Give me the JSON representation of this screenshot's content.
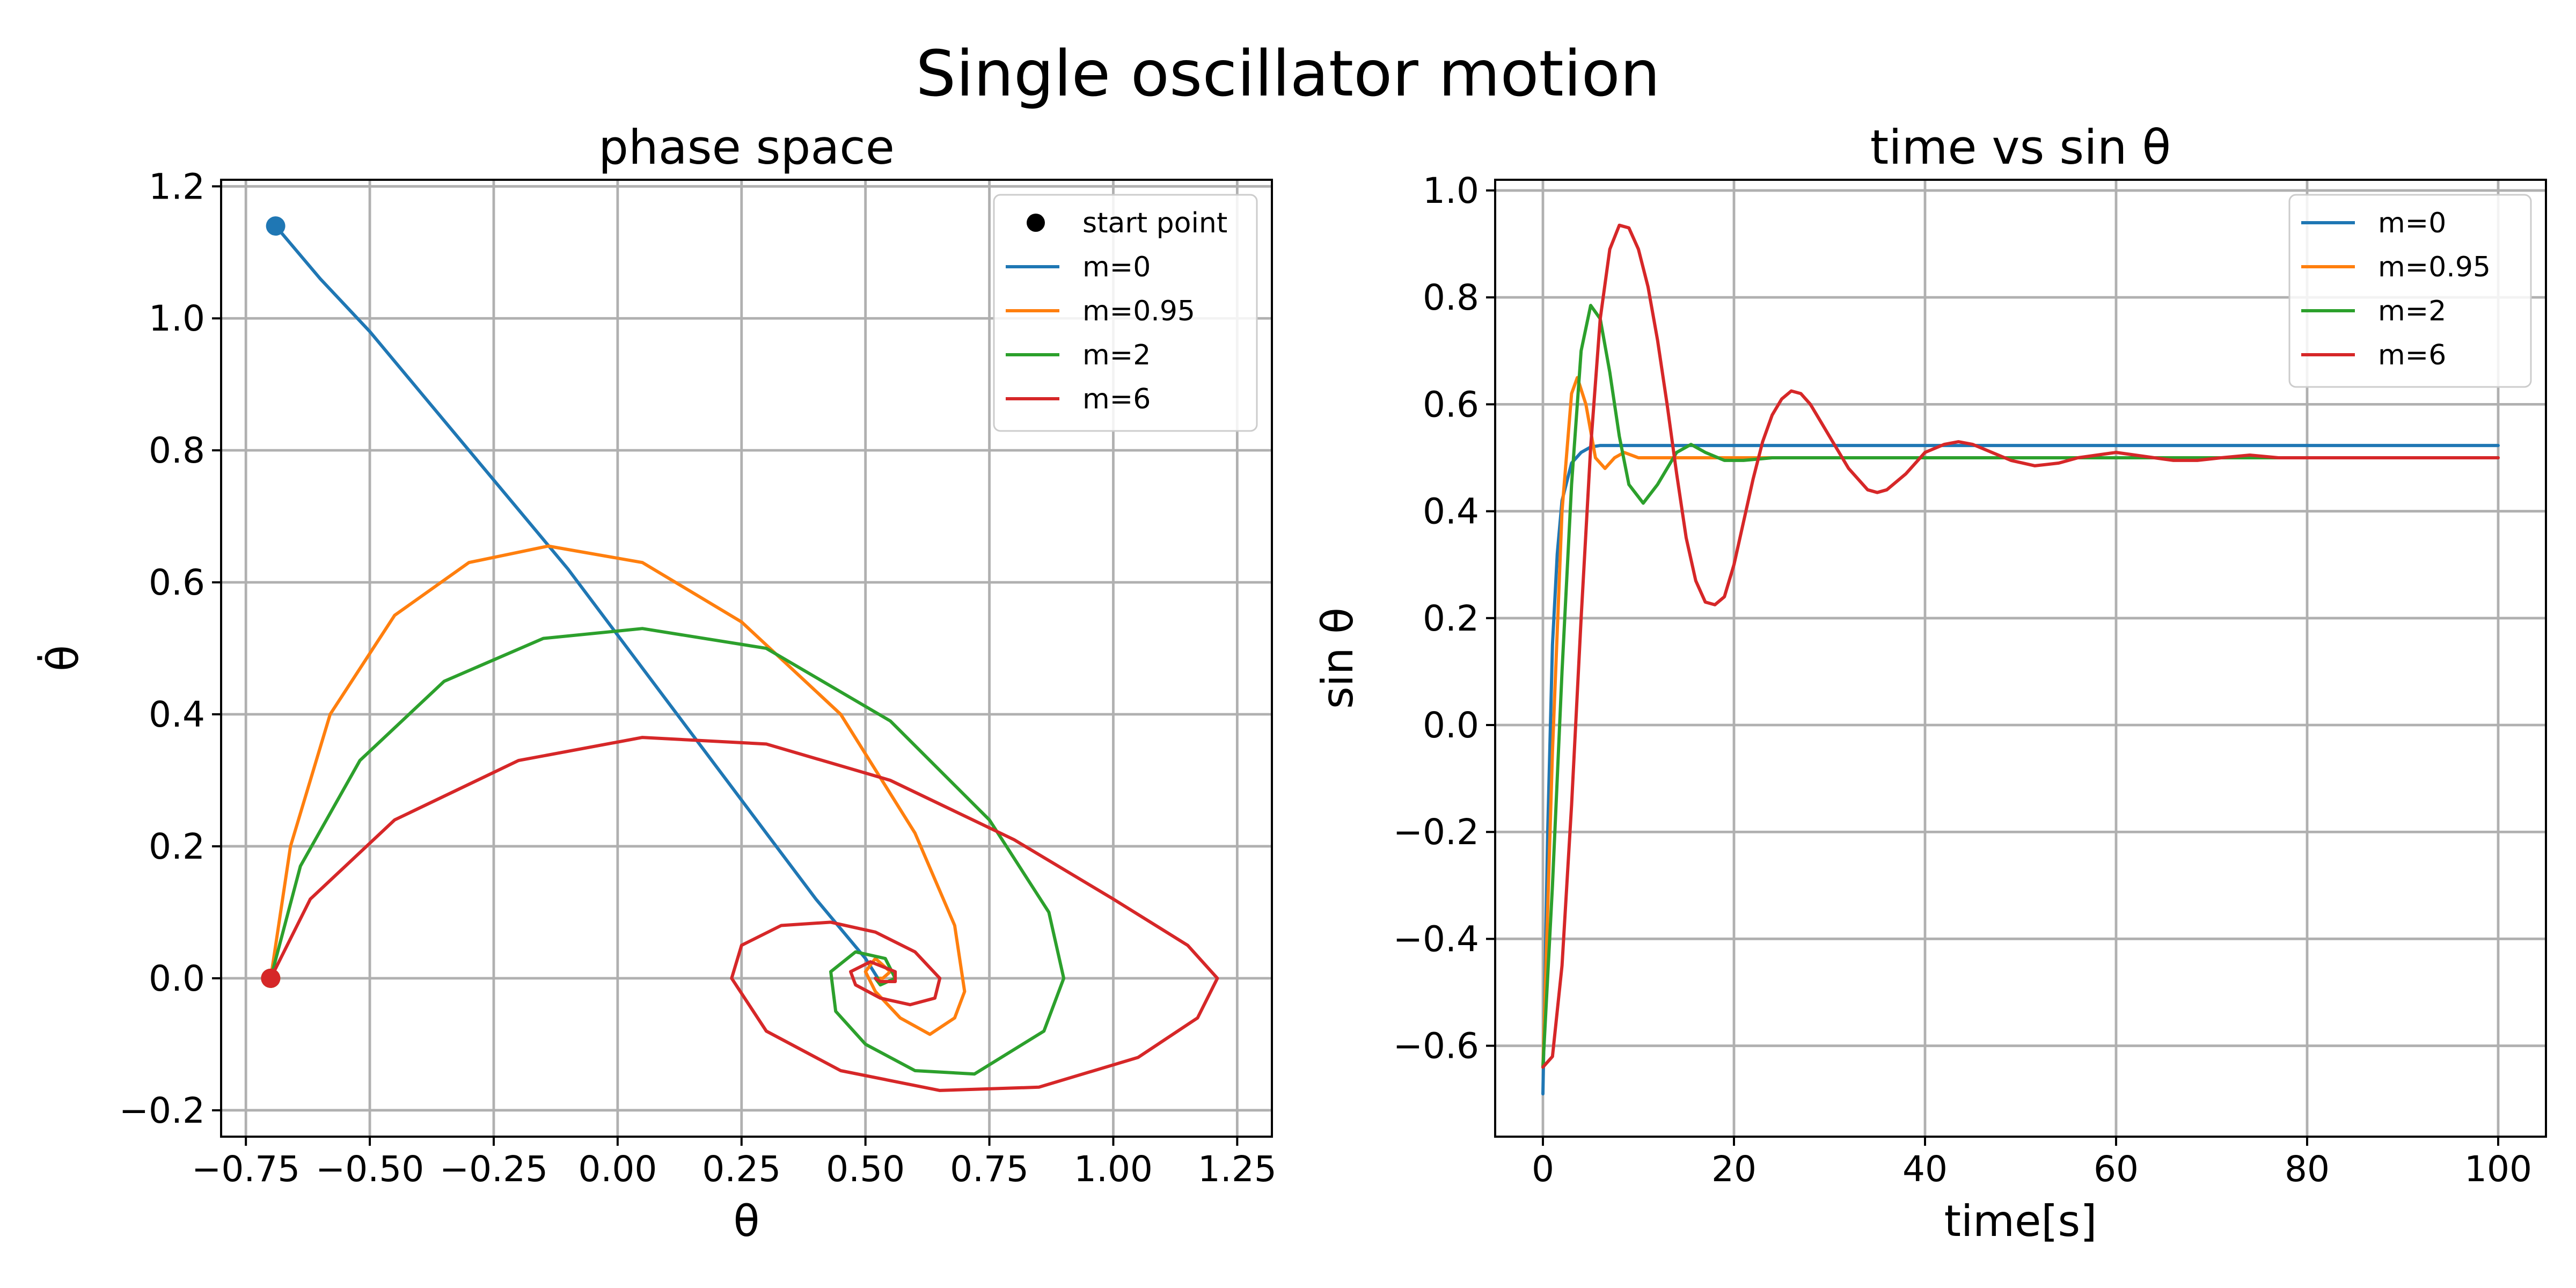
{
  "figure": {
    "title": "Single oscillator motion"
  },
  "colors": {
    "m=0": "#1f77b4",
    "m=0.95": "#ff7f0e",
    "m=2": "#2ca02c",
    "m=6": "#d62728",
    "start": "#000000",
    "grid": "#b0b0b0"
  },
  "chart_data": [
    {
      "type": "line",
      "title": "phase space",
      "xlabel": "θ",
      "ylabel": "θ̇",
      "xlim": [
        -0.8,
        1.32
      ],
      "ylim": [
        -0.24,
        1.21
      ],
      "xticks": [
        -0.75,
        -0.5,
        -0.25,
        0.0,
        0.25,
        0.5,
        0.75,
        1.0,
        1.25
      ],
      "xtick_labels": [
        "−0.75",
        "−0.50",
        "−0.25",
        "0.00",
        "0.25",
        "0.50",
        "0.75",
        "1.00",
        "1.25"
      ],
      "yticks": [
        -0.2,
        0.0,
        0.2,
        0.4,
        0.6,
        0.8,
        1.0,
        1.2
      ],
      "ytick_labels": [
        "−0.2",
        "0.0",
        "0.2",
        "0.4",
        "0.6",
        "0.8",
        "1.0",
        "1.2"
      ],
      "grid": true,
      "legend": {
        "position": "top-right",
        "entries": [
          "start point",
          "m=0",
          "m=0.95",
          "m=2",
          "m=6"
        ]
      },
      "start_points": [
        {
          "series": "m=0",
          "x": -0.69,
          "y": 1.14
        },
        {
          "series": "m=0.95",
          "x": -0.7,
          "y": 0.0
        },
        {
          "series": "m=2",
          "x": -0.7,
          "y": 0.0
        },
        {
          "series": "m=6",
          "x": -0.7,
          "y": 0.0
        }
      ],
      "series": [
        {
          "name": "m=0",
          "x": [
            -0.69,
            -0.6,
            -0.5,
            -0.4,
            -0.3,
            -0.2,
            -0.1,
            0.0,
            0.1,
            0.2,
            0.3,
            0.4,
            0.5,
            0.525,
            0.53
          ],
          "y": [
            1.14,
            1.06,
            0.98,
            0.89,
            0.8,
            0.71,
            0.62,
            0.52,
            0.42,
            0.32,
            0.22,
            0.12,
            0.03,
            0.0,
            0.0
          ]
        },
        {
          "name": "m=0.95",
          "x": [
            -0.7,
            -0.66,
            -0.58,
            -0.45,
            -0.3,
            -0.14,
            0.05,
            0.25,
            0.45,
            0.6,
            0.68,
            0.7,
            0.68,
            0.63,
            0.57,
            0.52,
            0.5,
            0.52,
            0.55,
            0.535,
            0.525
          ],
          "y": [
            0.0,
            0.2,
            0.4,
            0.55,
            0.63,
            0.655,
            0.63,
            0.54,
            0.4,
            0.22,
            0.08,
            -0.02,
            -0.06,
            -0.085,
            -0.06,
            -0.02,
            0.01,
            0.03,
            0.01,
            0.0,
            0.0
          ]
        },
        {
          "name": "m=2",
          "x": [
            -0.7,
            -0.64,
            -0.52,
            -0.35,
            -0.15,
            0.05,
            0.3,
            0.55,
            0.75,
            0.87,
            0.9,
            0.86,
            0.72,
            0.6,
            0.5,
            0.44,
            0.43,
            0.48,
            0.54,
            0.56,
            0.53,
            0.52,
            0.525
          ],
          "y": [
            0.0,
            0.17,
            0.33,
            0.45,
            0.515,
            0.53,
            0.5,
            0.39,
            0.24,
            0.1,
            0.0,
            -0.08,
            -0.145,
            -0.14,
            -0.1,
            -0.05,
            0.01,
            0.04,
            0.03,
            0.0,
            -0.01,
            0.0,
            0.0
          ]
        },
        {
          "name": "m=6",
          "x": [
            -0.7,
            -0.62,
            -0.45,
            -0.2,
            0.05,
            0.3,
            0.55,
            0.8,
            1.0,
            1.15,
            1.21,
            1.17,
            1.05,
            0.85,
            0.65,
            0.45,
            0.3,
            0.23,
            0.25,
            0.33,
            0.43,
            0.52,
            0.6,
            0.65,
            0.64,
            0.59,
            0.53,
            0.48,
            0.47,
            0.51,
            0.56,
            0.56,
            0.53,
            0.52
          ],
          "y": [
            0.0,
            0.12,
            0.24,
            0.33,
            0.365,
            0.355,
            0.3,
            0.21,
            0.12,
            0.05,
            0.0,
            -0.06,
            -0.12,
            -0.165,
            -0.17,
            -0.14,
            -0.08,
            0.0,
            0.05,
            0.08,
            0.085,
            0.07,
            0.04,
            0.0,
            -0.03,
            -0.04,
            -0.03,
            -0.01,
            0.01,
            0.025,
            0.01,
            -0.005,
            -0.005,
            0.0
          ]
        }
      ]
    },
    {
      "type": "line",
      "title": "time vs sin θ",
      "xlabel": "time[s]",
      "ylabel": "sin θ",
      "xlim": [
        -5,
        105
      ],
      "ylim": [
        -0.77,
        1.02
      ],
      "xticks": [
        0,
        20,
        40,
        60,
        80,
        100
      ],
      "xtick_labels": [
        "0",
        "20",
        "40",
        "60",
        "80",
        "100"
      ],
      "yticks": [
        -0.6,
        -0.4,
        -0.2,
        0.0,
        0.2,
        0.4,
        0.6,
        0.8,
        1.0
      ],
      "ytick_labels": [
        "−0.6",
        "−0.4",
        "−0.2",
        "0.0",
        "0.2",
        "0.4",
        "0.6",
        "0.8",
        "1.0"
      ],
      "grid": true,
      "legend": {
        "position": "top-right",
        "entries": [
          "m=0",
          "m=0.95",
          "m=2",
          "m=6"
        ]
      },
      "series": [
        {
          "name": "m=0",
          "x": [
            0,
            0.5,
            1,
            1.5,
            2,
            3,
            4,
            5,
            6,
            8,
            10,
            100
          ],
          "y": [
            -0.69,
            -0.2,
            0.15,
            0.32,
            0.42,
            0.49,
            0.51,
            0.52,
            0.523,
            0.523,
            0.523,
            0.523
          ]
        },
        {
          "name": "m=0.95",
          "x": [
            0,
            1,
            2,
            3,
            3.6,
            4.5,
            5.5,
            6.5,
            7.5,
            8.5,
            10,
            12,
            14,
            100
          ],
          "y": [
            -0.64,
            -0.05,
            0.4,
            0.62,
            0.65,
            0.6,
            0.5,
            0.48,
            0.5,
            0.51,
            0.5,
            0.5,
            0.5,
            0.5
          ]
        },
        {
          "name": "m=2",
          "x": [
            0,
            1,
            2,
            3,
            4,
            5,
            6,
            7,
            8,
            9,
            10.5,
            12,
            14,
            15.5,
            17,
            19,
            21,
            24,
            28,
            100
          ],
          "y": [
            -0.64,
            -0.3,
            0.1,
            0.45,
            0.7,
            0.785,
            0.76,
            0.66,
            0.54,
            0.45,
            0.415,
            0.45,
            0.51,
            0.525,
            0.51,
            0.495,
            0.495,
            0.5,
            0.5,
            0.5
          ]
        },
        {
          "name": "m=6",
          "x": [
            0,
            1,
            2,
            3,
            4,
            5,
            6,
            7,
            8,
            9,
            10,
            11,
            12,
            13,
            14,
            15,
            16,
            17,
            18,
            19,
            20,
            21,
            22,
            23,
            24,
            25,
            26,
            27,
            28,
            29,
            30,
            32,
            34,
            35,
            36,
            38,
            40,
            42,
            43.5,
            45,
            47,
            49,
            51.5,
            54,
            56,
            58,
            60,
            62,
            64,
            66,
            68.5,
            71,
            74,
            77,
            80,
            85,
            90,
            100
          ],
          "y": [
            -0.64,
            -0.62,
            -0.45,
            -0.15,
            0.2,
            0.52,
            0.76,
            0.89,
            0.935,
            0.93,
            0.89,
            0.82,
            0.72,
            0.6,
            0.47,
            0.35,
            0.27,
            0.23,
            0.225,
            0.24,
            0.3,
            0.38,
            0.46,
            0.53,
            0.58,
            0.61,
            0.625,
            0.62,
            0.6,
            0.57,
            0.54,
            0.48,
            0.44,
            0.435,
            0.44,
            0.47,
            0.51,
            0.525,
            0.53,
            0.525,
            0.51,
            0.495,
            0.485,
            0.49,
            0.5,
            0.505,
            0.51,
            0.505,
            0.5,
            0.495,
            0.495,
            0.5,
            0.505,
            0.5,
            0.5,
            0.5,
            0.5,
            0.5
          ]
        }
      ]
    }
  ]
}
